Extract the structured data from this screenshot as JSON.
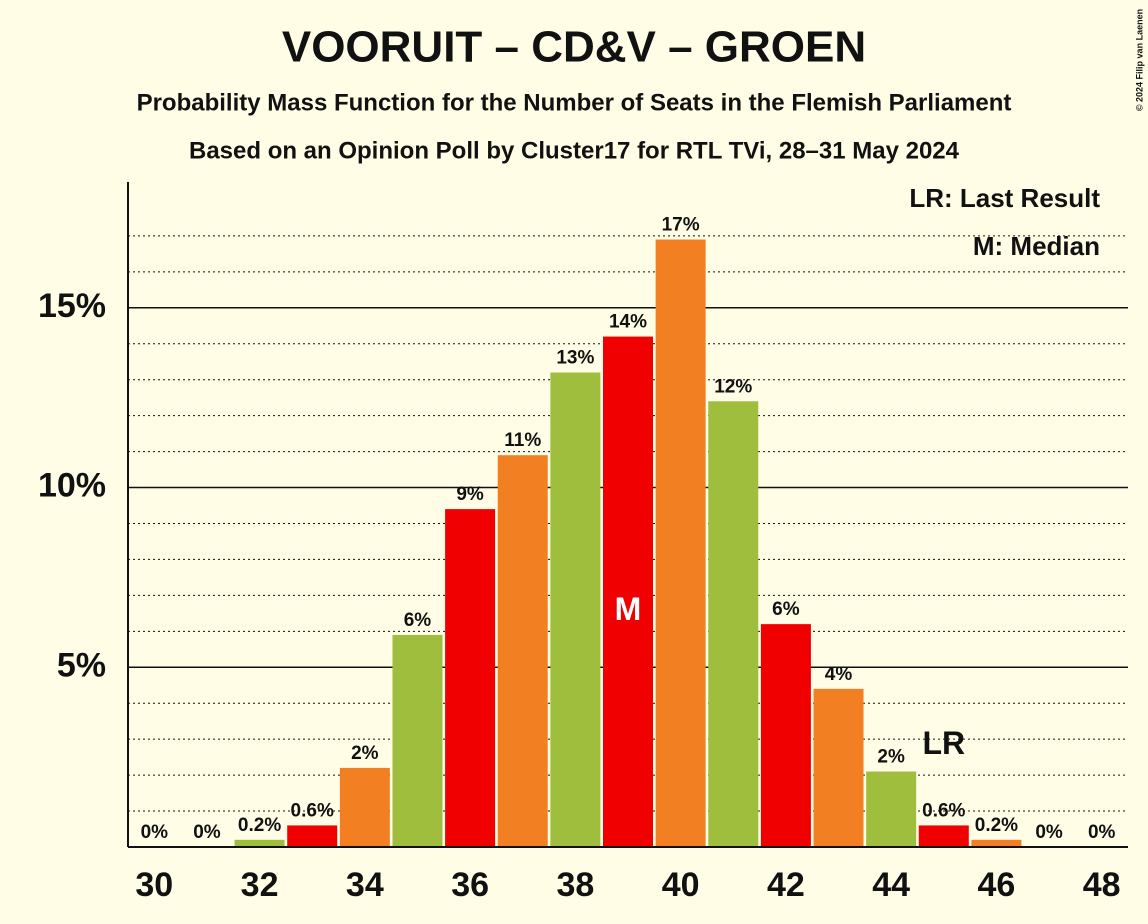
{
  "chart_data": {
    "type": "bar",
    "title": "VOORUIT – CD&V – GROEN",
    "subtitle": "Probability Mass Function for the Number of Seats in the Flemish Parliament",
    "subtitle2": "Based on an Opinion Poll by Cluster17 for RTL TVi, 28–31 May 2024",
    "copyright": "© 2024 Filip van Laenen",
    "x": [
      30,
      31,
      32,
      33,
      34,
      35,
      36,
      37,
      38,
      39,
      40,
      41,
      42,
      43,
      44,
      45,
      46,
      47,
      48
    ],
    "values": [
      0,
      0,
      0.2,
      0.6,
      2.2,
      5.9,
      9.4,
      10.9,
      13.2,
      14.2,
      16.9,
      12.4,
      6.2,
      4.4,
      2.1,
      0.6,
      0.2,
      0,
      0
    ],
    "value_labels": [
      "0%",
      "0%",
      "0.2%",
      "0.6%",
      "2%",
      "6%",
      "9%",
      "11%",
      "13%",
      "14%",
      "17%",
      "12%",
      "6%",
      "4%",
      "2%",
      "0.6%",
      "0.2%",
      "0%",
      "0%"
    ],
    "colors": [
      "#a0be3e",
      "#f00000",
      "#a0be3e",
      "#f00000",
      "#f28022",
      "#a0be3e",
      "#f00000",
      "#f28022",
      "#a0be3e",
      "#f00000",
      "#f28022",
      "#a0be3e",
      "#f00000",
      "#f28022",
      "#a0be3e",
      "#f00000",
      "#f28022",
      "#a0be3e",
      "#f00000"
    ],
    "xlim": [
      29.5,
      48.5
    ],
    "xticks": [
      30,
      32,
      34,
      36,
      38,
      40,
      42,
      44,
      46,
      48
    ],
    "ylim": [
      0,
      18.5
    ],
    "yticks": [
      {
        "value": 5,
        "label": "5%"
      },
      {
        "value": 10,
        "label": "10%"
      },
      {
        "value": 15,
        "label": "15%"
      }
    ],
    "minor_yticks": [
      1,
      2,
      3,
      4,
      6,
      7,
      8,
      9,
      11,
      12,
      13,
      14,
      16,
      17
    ],
    "annotations": [
      {
        "text": "M",
        "x": 39,
        "color": "#ffffff",
        "place": "inside"
      },
      {
        "text": "LR",
        "x": 45,
        "color": "#111111",
        "place": "above"
      }
    ],
    "legend": [
      "LR: Last Result",
      "M: Median"
    ]
  }
}
